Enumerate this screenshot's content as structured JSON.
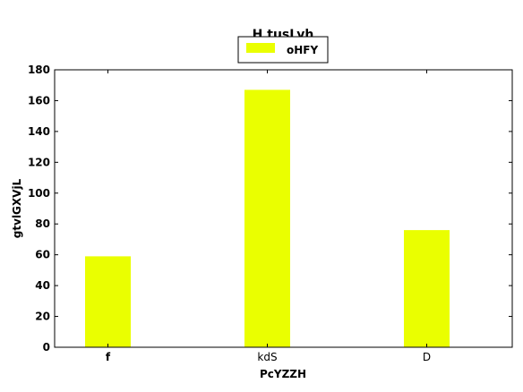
{
  "chart_data": {
    "type": "bar",
    "title": "H tusLyh",
    "xlabel": "PcYZZH",
    "ylabel": "gtvlGXVjL",
    "categories": [
      "f",
      "kdS",
      "D"
    ],
    "series": [
      {
        "name": "oHFY",
        "values": [
          59,
          167,
          76
        ]
      }
    ],
    "ylim": [
      0,
      180
    ],
    "yticks": [
      0,
      20,
      40,
      60,
      80,
      100,
      120,
      140,
      160,
      180
    ],
    "ytick_labels": [
      "0",
      "20",
      "40",
      "60",
      "80",
      "100",
      "120",
      "140",
      "160",
      "180"
    ],
    "grid": false,
    "legend_position": "top-center",
    "colors": {
      "bar": "#eaff00",
      "axes": "#000000",
      "background": "#ffffff"
    }
  }
}
